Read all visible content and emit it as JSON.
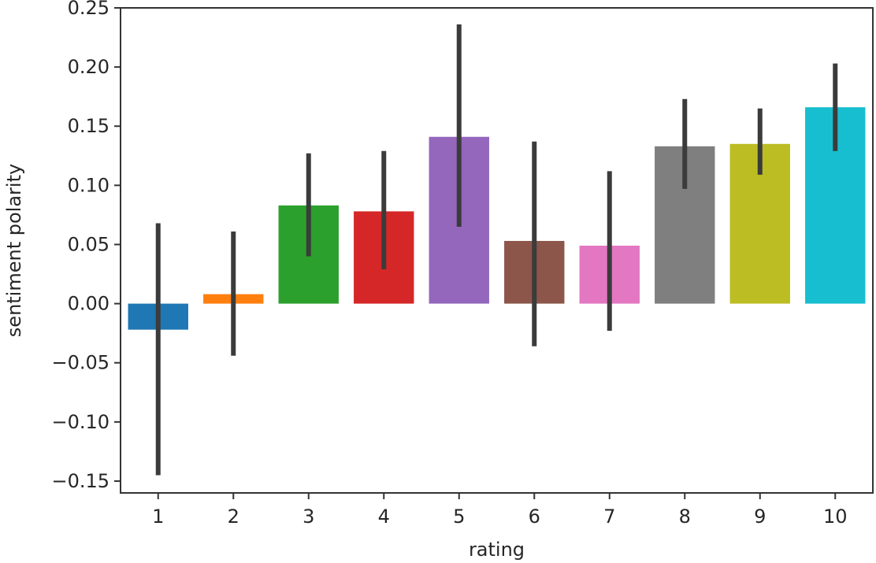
{
  "chart_data": {
    "type": "bar",
    "xlabel": "rating",
    "ylabel": "sentiment polarity",
    "categories": [
      "1",
      "2",
      "3",
      "4",
      "5",
      "6",
      "7",
      "8",
      "9",
      "10"
    ],
    "values": [
      -0.022,
      0.008,
      0.083,
      0.078,
      0.141,
      0.053,
      0.049,
      0.133,
      0.135,
      0.166
    ],
    "error_low": [
      -0.145,
      -0.044,
      0.04,
      0.029,
      0.065,
      -0.036,
      -0.023,
      0.097,
      0.109,
      0.129
    ],
    "error_high": [
      0.068,
      0.061,
      0.127,
      0.129,
      0.236,
      0.137,
      0.112,
      0.173,
      0.165,
      0.203
    ],
    "colors": [
      "#1f77b4",
      "#ff7f0e",
      "#2ca02c",
      "#d62728",
      "#9467bd",
      "#8c564b",
      "#e377c2",
      "#7f7f7f",
      "#bcbd22",
      "#17becf"
    ],
    "error_color": "#3b3b3b",
    "ylim": [
      -0.16,
      0.25
    ],
    "yticks": [
      "0.25",
      "0.20",
      "0.15",
      "0.10",
      "0.05",
      "0.00",
      "−0.05",
      "−0.10",
      "−0.15"
    ],
    "ytick_values": [
      0.25,
      0.2,
      0.15,
      0.1,
      0.05,
      0.0,
      -0.05,
      -0.1,
      -0.15
    ],
    "grid": false,
    "legend": "none"
  }
}
